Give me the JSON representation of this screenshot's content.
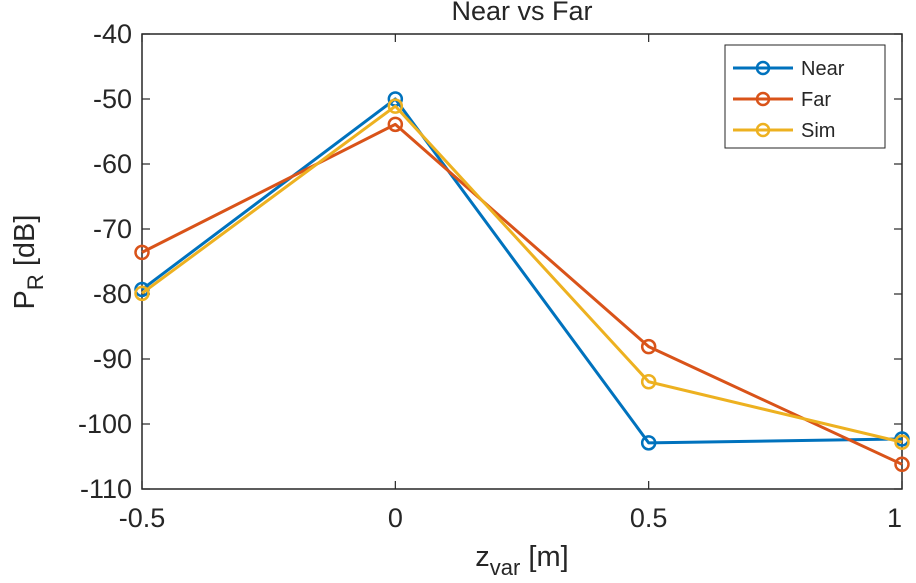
{
  "chart_data": {
    "type": "line",
    "title": "Near vs Far",
    "xlabel": {
      "main": "z",
      "sub": "var",
      "unit": " [m]"
    },
    "ylabel": {
      "main": "P",
      "sub": "R",
      "unit": " [dB]"
    },
    "x": [
      -0.5,
      0,
      0.5,
      1
    ],
    "xlim": [
      -0.5,
      1
    ],
    "ylim": [
      -110,
      -40
    ],
    "xticks": [
      "-0.5",
      "0",
      "0.5",
      "1"
    ],
    "yticks": [
      "-40",
      "-50",
      "-60",
      "-70",
      "-80",
      "-90",
      "-100",
      "-110"
    ],
    "grid": false,
    "legend_position": "top-right",
    "marker": "circle",
    "series": [
      {
        "name": "Near",
        "color": "#0072BD",
        "values": [
          -79.3,
          -50.0,
          -102.9,
          -102.3
        ]
      },
      {
        "name": "Far",
        "color": "#D95319",
        "values": [
          -73.6,
          -53.9,
          -88.1,
          -106.2
        ]
      },
      {
        "name": "Sim",
        "color": "#EDB120",
        "values": [
          -79.9,
          -51.1,
          -93.5,
          -102.8
        ]
      }
    ]
  }
}
